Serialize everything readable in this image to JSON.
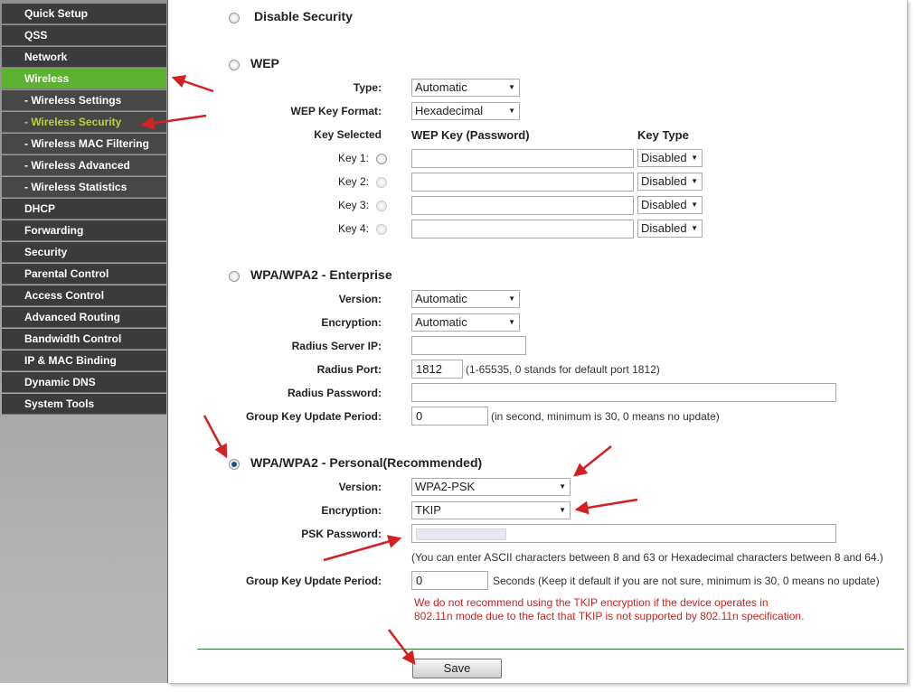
{
  "sidebar": {
    "items": [
      {
        "label": "Quick Setup"
      },
      {
        "label": "QSS"
      },
      {
        "label": "Network"
      },
      {
        "label": "Wireless",
        "active": true
      },
      {
        "label": "- Wireless Settings"
      },
      {
        "label": "- Wireless Security",
        "current": true
      },
      {
        "label": "- Wireless MAC Filtering"
      },
      {
        "label": "- Wireless Advanced"
      },
      {
        "label": "- Wireless Statistics"
      },
      {
        "label": "DHCP"
      },
      {
        "label": "Forwarding"
      },
      {
        "label": "Security"
      },
      {
        "label": "Parental Control"
      },
      {
        "label": "Access Control"
      },
      {
        "label": "Advanced Routing"
      },
      {
        "label": "Bandwidth Control"
      },
      {
        "label": "IP & MAC Binding"
      },
      {
        "label": "Dynamic DNS"
      },
      {
        "label": "System Tools"
      }
    ]
  },
  "disable": {
    "title": "Disable Security",
    "selected": false
  },
  "wep": {
    "title": "WEP",
    "selected": false,
    "type_label": "Type:",
    "type_value": "Automatic",
    "format_label": "WEP Key Format:",
    "format_value": "Hexadecimal",
    "key_selected_label": "Key Selected",
    "key_header": "WEP Key (Password)",
    "type_header": "Key Type",
    "keys": [
      {
        "label": "Key 1:",
        "value": "",
        "type": "Disabled"
      },
      {
        "label": "Key 2:",
        "value": "",
        "type": "Disabled"
      },
      {
        "label": "Key 3:",
        "value": "",
        "type": "Disabled"
      },
      {
        "label": "Key 4:",
        "value": "",
        "type": "Disabled"
      }
    ]
  },
  "enterprise": {
    "title": "WPA/WPA2 - Enterprise",
    "selected": false,
    "version_label": "Version:",
    "version_value": "Automatic",
    "encryption_label": "Encryption:",
    "encryption_value": "Automatic",
    "radius_ip_label": "Radius Server IP:",
    "radius_ip_value": "",
    "radius_port_label": "Radius Port:",
    "radius_port_value": "1812",
    "radius_port_note": "(1-65535, 0 stands for default port 1812)",
    "radius_pw_label": "Radius Password:",
    "radius_pw_value": "",
    "group_label": "Group Key Update Period:",
    "group_value": "0",
    "group_note": "(in second, minimum is 30, 0 means no update)"
  },
  "personal": {
    "title": "WPA/WPA2 - Personal(Recommended)",
    "selected": true,
    "version_label": "Version:",
    "version_value": "WPA2-PSK",
    "encryption_label": "Encryption:",
    "encryption_value": "TKIP",
    "psk_label": "PSK Password:",
    "psk_note": "(You can enter ASCII characters between 8 and 63 or Hexadecimal characters between 8 and 64.)",
    "group_label": "Group Key Update Period:",
    "group_value": "0",
    "group_note": "Seconds (Keep it default if you are not sure, minimum is 30, 0 means no update)",
    "warning_line1": "We do not recommend using the TKIP encryption if the device operates in",
    "warning_line2": "802.11n mode due to the fact that TKIP is not supported by 802.11n specification."
  },
  "save_label": "Save",
  "colors": {
    "nav_active": "#5db130",
    "nav_current_text": "#b6d43a",
    "warning": "#cc2222",
    "annotation_arrow": "#d42020",
    "divider": "#2e7d3a"
  }
}
